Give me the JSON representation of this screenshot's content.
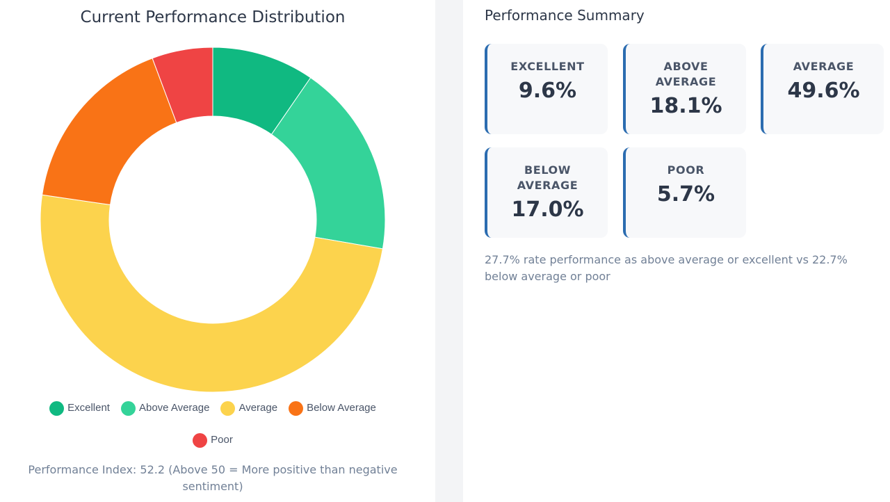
{
  "chart_section": {
    "title": "Current Performance Distribution",
    "index_note": "Performance Index: 52.2 (Above 50 = More positive than negative sentiment)"
  },
  "chart_data": {
    "type": "pie",
    "title": "Current Performance Distribution",
    "categories": [
      "Excellent",
      "Above Average",
      "Average",
      "Below Average",
      "Poor"
    ],
    "values": [
      9.6,
      18.1,
      49.6,
      17.0,
      5.7
    ],
    "unit": "%",
    "colors": [
      "#10b981",
      "#34d399",
      "#fcd34d",
      "#f97316",
      "#ef4444"
    ],
    "legend_placement": "bottom"
  },
  "summary": {
    "title": "Performance Summary",
    "cards": [
      {
        "label": "EXCELLENT",
        "value": "9.6%"
      },
      {
        "label": "ABOVE AVERAGE",
        "value": "18.1%"
      },
      {
        "label": "AVERAGE",
        "value": "49.6%"
      },
      {
        "label": "BELOW AVERAGE",
        "value": "17.0%"
      },
      {
        "label": "POOR",
        "value": "5.7%"
      }
    ],
    "note": "27.7% rate performance as above average or excellent vs 22.7% below average or poor",
    "accent_color": "#2b6cb0"
  }
}
